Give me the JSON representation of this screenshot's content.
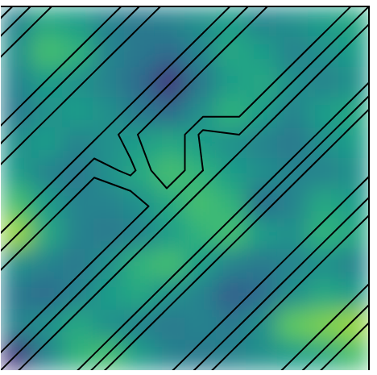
{
  "chart_data": {
    "type": "contour",
    "color": "viridis",
    "tick_labels": false,
    "color_range": [
      0,
      1
    ],
    "cells": [
      [
        0.45,
        0.6,
        0.55,
        0.45,
        0.4,
        0.45,
        0.5,
        0.55,
        0.45,
        0.5,
        0.55,
        0.6
      ],
      [
        0.5,
        0.7,
        0.65,
        0.45,
        0.4,
        0.35,
        0.45,
        0.6,
        0.55,
        0.45,
        0.5,
        0.55
      ],
      [
        0.45,
        0.55,
        0.5,
        0.45,
        0.35,
        0.15,
        0.4,
        0.55,
        0.6,
        0.5,
        0.45,
        0.5
      ],
      [
        0.4,
        0.5,
        0.55,
        0.5,
        0.4,
        0.35,
        0.5,
        0.65,
        0.55,
        0.45,
        0.55,
        0.6
      ],
      [
        0.5,
        0.55,
        0.45,
        0.5,
        0.55,
        0.6,
        0.55,
        0.5,
        0.45,
        0.4,
        0.5,
        0.55
      ],
      [
        0.55,
        0.45,
        0.4,
        0.5,
        0.6,
        0.7,
        0.65,
        0.55,
        0.5,
        0.45,
        0.45,
        0.5
      ],
      [
        0.7,
        0.55,
        0.45,
        0.45,
        0.5,
        0.6,
        0.7,
        0.65,
        0.35,
        0.45,
        0.6,
        0.55
      ],
      [
        0.85,
        0.6,
        0.45,
        0.4,
        0.45,
        0.55,
        0.65,
        0.7,
        0.55,
        0.5,
        0.65,
        0.6
      ],
      [
        0.5,
        0.45,
        0.4,
        0.5,
        0.65,
        0.7,
        0.55,
        0.45,
        0.4,
        0.45,
        0.5,
        0.45
      ],
      [
        0.4,
        0.35,
        0.45,
        0.55,
        0.6,
        0.5,
        0.45,
        0.3,
        0.35,
        0.5,
        0.6,
        0.55
      ],
      [
        0.45,
        0.5,
        0.6,
        0.5,
        0.45,
        0.4,
        0.45,
        0.4,
        0.5,
        0.75,
        0.8,
        0.85
      ],
      [
        0.15,
        0.45,
        0.65,
        0.7,
        0.55,
        0.45,
        0.4,
        0.45,
        0.5,
        0.55,
        0.6,
        0.7
      ]
    ],
    "contour_field": [
      [
        0.2,
        0.3,
        0.6,
        0.8,
        0.7,
        0.4,
        0.2,
        0.3,
        0.6,
        0.85,
        0.8,
        0.5
      ],
      [
        0.3,
        0.6,
        0.8,
        0.7,
        0.4,
        0.2,
        0.3,
        0.6,
        0.85,
        0.8,
        0.5,
        0.2
      ],
      [
        0.6,
        0.8,
        0.7,
        0.4,
        0.2,
        0.3,
        0.6,
        0.85,
        0.8,
        0.5,
        0.2,
        0.3
      ],
      [
        0.8,
        0.7,
        0.4,
        0.2,
        0.3,
        0.6,
        0.85,
        0.8,
        0.5,
        0.2,
        0.3,
        0.7
      ],
      [
        0.7,
        0.4,
        0.2,
        0.3,
        0.6,
        0.85,
        0.45,
        0.5,
        0.2,
        0.3,
        0.7,
        0.8
      ],
      [
        0.4,
        0.2,
        0.3,
        0.6,
        0.45,
        0.8,
        0.5,
        0.2,
        0.3,
        0.7,
        0.8,
        0.6
      ],
      [
        0.2,
        0.3,
        0.6,
        0.85,
        0.8,
        0.5,
        0.2,
        0.3,
        0.7,
        0.8,
        0.6,
        0.3
      ],
      [
        0.3,
        0.6,
        0.85,
        0.8,
        0.5,
        0.2,
        0.3,
        0.7,
        0.8,
        0.6,
        0.3,
        0.2
      ],
      [
        0.6,
        0.85,
        0.8,
        0.5,
        0.2,
        0.3,
        0.7,
        0.8,
        0.6,
        0.3,
        0.2,
        0.4
      ],
      [
        0.85,
        0.8,
        0.5,
        0.2,
        0.3,
        0.7,
        0.8,
        0.6,
        0.3,
        0.2,
        0.4,
        0.7
      ],
      [
        0.8,
        0.5,
        0.2,
        0.3,
        0.7,
        0.8,
        0.6,
        0.3,
        0.2,
        0.4,
        0.7,
        0.8
      ],
      [
        0.5,
        0.2,
        0.3,
        0.7,
        0.8,
        0.6,
        0.3,
        0.2,
        0.4,
        0.7,
        0.8,
        0.5
      ]
    ],
    "contour_levels": [
      0.35,
      0.5,
      0.65
    ]
  }
}
